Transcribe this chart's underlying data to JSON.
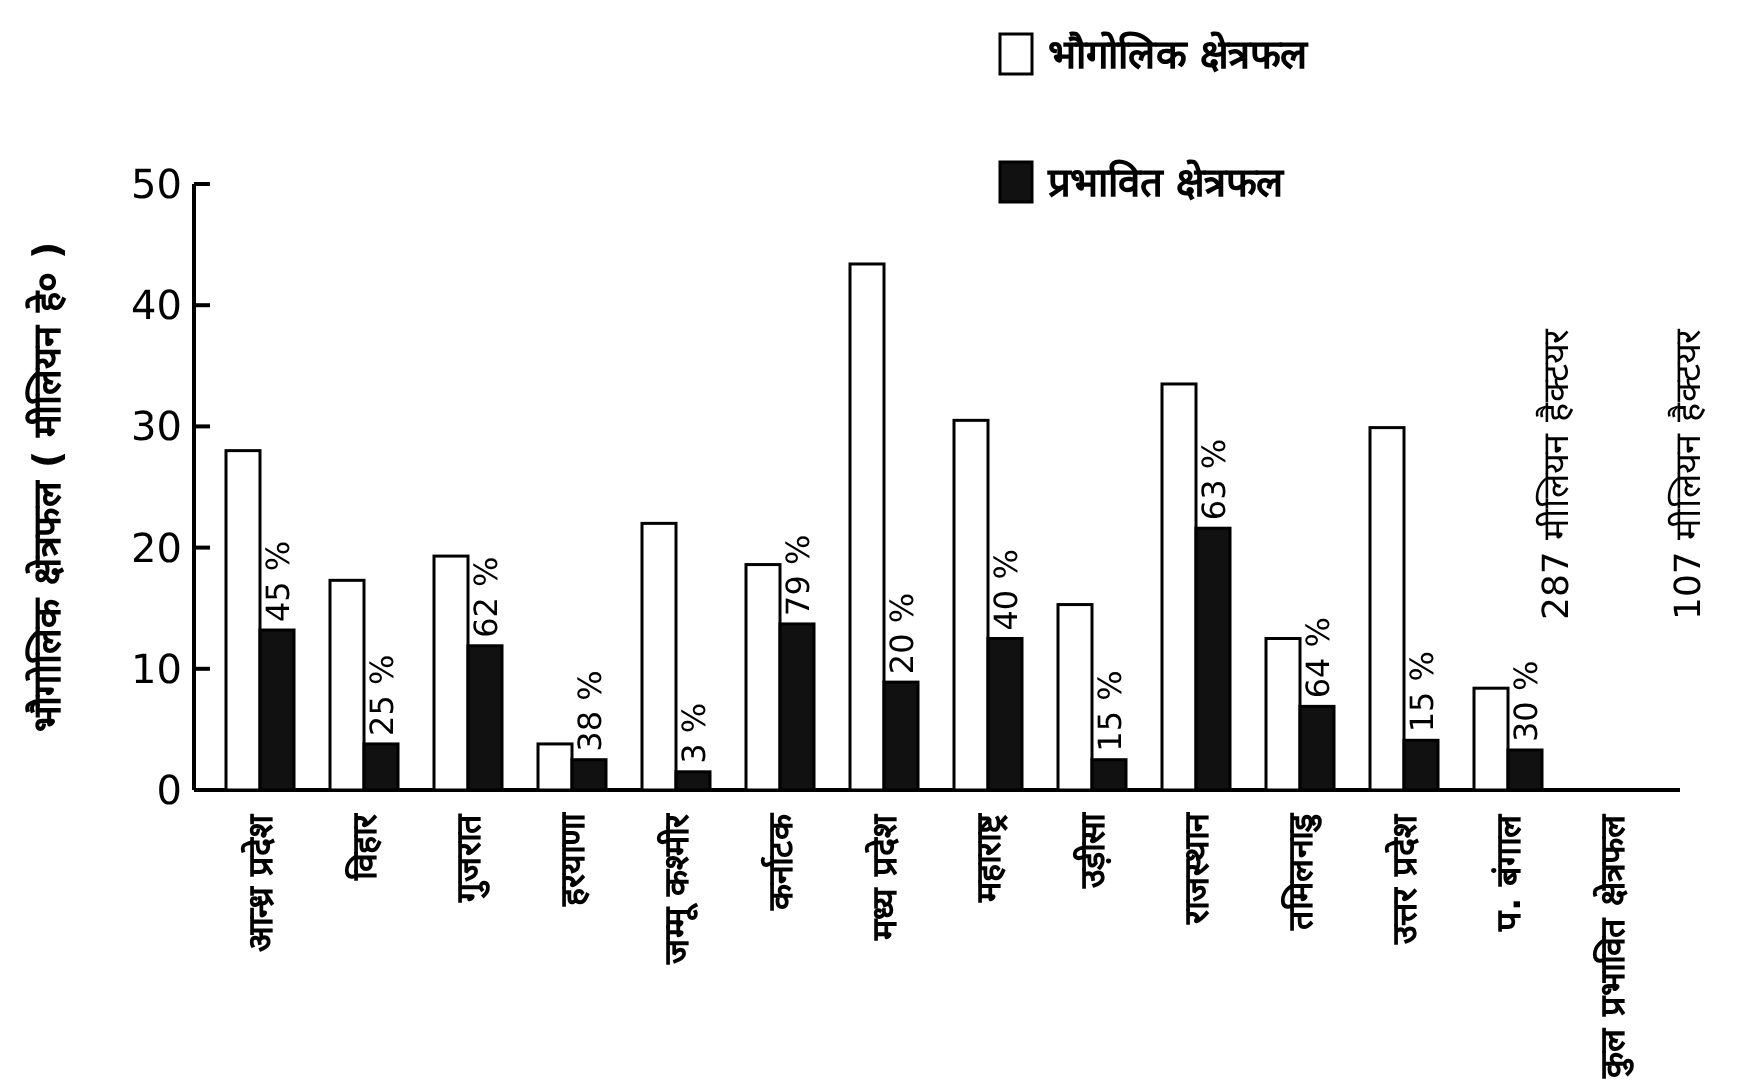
{
  "chart_data": {
    "type": "bar",
    "ylabel": "भौगोलिक क्षेत्रफल ( मीलियन हे० )",
    "categories": [
      "आन्ध्र प्रदेश",
      "विहार",
      "गुजरात",
      "हरयाणा",
      "जम्मू कश्मीर",
      "कर्नाटक",
      "मध्य प्रदेश",
      "महाराष्ट्र",
      "उड़ीसा",
      "राजस्थान",
      "तमिलनाडु",
      "उत्तर प्रदेश",
      "प. बंगाल",
      "कुल प्रभावित क्षेत्रफल"
    ],
    "series": [
      {
        "name": "भौगोलिक क्षेत्रफल",
        "color": "#ffffff",
        "values": [
          28,
          17.3,
          19.3,
          3.8,
          22,
          18.6,
          43.4,
          30.5,
          15.3,
          33.5,
          12.5,
          29.9,
          8.4,
          null
        ]
      },
      {
        "name": "प्रभावित क्षेत्रफल",
        "color": "#111111",
        "values": [
          13.2,
          3.8,
          11.9,
          2.5,
          1.5,
          13.7,
          8.9,
          12.5,
          2.5,
          21.6,
          6.9,
          4.1,
          3.3,
          null
        ]
      }
    ],
    "ylim": [
      0,
      50
    ],
    "yticks": [
      0,
      10,
      20,
      30,
      40,
      50
    ],
    "legend": "top right",
    "annotations": [
      "287 मीलियन हैक्टयर",
      "107 मीलियन हैक्टयर",
      {
        "text": "45 %",
        "x": "आन्ध्र प्रदेश",
        "y": 13.2
      },
      {
        "text": "25 %",
        "x": "विहार",
        "y": 3.8
      },
      {
        "text": "62 %",
        "x": "गुजरात",
        "y": 11.9
      },
      {
        "text": "38 %",
        "x": "हरयाणा",
        "y": 2.5
      },
      {
        "text": "3 %",
        "x": "जम्मू कश्मीर",
        "y": 1.5
      },
      {
        "text": "79 %",
        "x": "कर्नाटक",
        "y": 13.7
      },
      {
        "text": "20 %",
        "x": "मध्य प्रदेश",
        "y": 8.9
      },
      {
        "text": "40 %",
        "x": "महाराष्ट्र",
        "y": 12.5
      },
      {
        "text": "15 %",
        "x": "उड़ीसा",
        "y": 2.5
      },
      {
        "text": "63 %",
        "x": "राजस्थान",
        "y": 21.6
      },
      {
        "text": "64 %",
        "x": "तमिलनाडु",
        "y": 6.9
      },
      {
        "text": "15 %",
        "x": "उत्तर प्रदेश",
        "y": 4.1
      },
      {
        "text": "30 %",
        "x": "प. बंगाल",
        "y": 3.3
      }
    ]
  }
}
